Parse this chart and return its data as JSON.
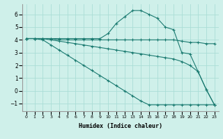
{
  "background_color": "#cff0ea",
  "grid_color": "#aaddd6",
  "line_color": "#1a7a70",
  "xlabel": "Humidex (Indice chaleur)",
  "xlim": [
    -0.5,
    23.5
  ],
  "ylim": [
    -1.6,
    6.8
  ],
  "yticks": [
    -1,
    0,
    1,
    2,
    3,
    4,
    5,
    6
  ],
  "xticks": [
    0,
    1,
    2,
    3,
    4,
    5,
    6,
    7,
    8,
    9,
    10,
    11,
    12,
    13,
    14,
    15,
    16,
    17,
    18,
    19,
    20,
    21,
    22,
    23
  ],
  "line1_x": [
    0,
    1,
    2,
    3,
    4,
    5,
    6,
    7,
    8,
    9,
    10,
    11,
    12,
    13,
    14,
    15,
    16,
    17,
    18,
    19,
    20,
    21,
    22,
    23
  ],
  "line1_y": [
    4.1,
    4.1,
    4.1,
    4.1,
    4.0,
    4.0,
    4.0,
    4.0,
    4.0,
    4.0,
    4.0,
    4.0,
    4.0,
    4.0,
    4.0,
    4.0,
    4.0,
    4.0,
    4.0,
    3.9,
    3.8,
    3.8,
    3.7,
    3.7
  ],
  "line2_x": [
    0,
    1,
    2,
    3,
    4,
    5,
    6,
    7,
    8,
    9,
    10,
    11,
    12,
    13,
    14,
    15,
    16,
    17,
    18,
    19,
    20,
    21,
    22,
    23
  ],
  "line2_y": [
    4.1,
    4.1,
    4.1,
    4.0,
    3.9,
    3.8,
    3.7,
    3.6,
    3.5,
    3.4,
    3.3,
    3.2,
    3.1,
    3.0,
    2.9,
    2.8,
    2.7,
    2.6,
    2.5,
    2.3,
    2.0,
    1.5,
    0.1,
    -1.1
  ],
  "line3_x": [
    0,
    1,
    2,
    3,
    4,
    5,
    6,
    7,
    8,
    9,
    10,
    11,
    12,
    13,
    14,
    15,
    16,
    17,
    18,
    19,
    20,
    21,
    22,
    23
  ],
  "line3_y": [
    4.1,
    4.1,
    4.0,
    3.6,
    3.2,
    2.8,
    2.4,
    2.0,
    1.6,
    1.2,
    0.8,
    0.4,
    0.0,
    -0.4,
    -0.8,
    -1.1,
    -1.1,
    -1.1,
    -1.1,
    -1.1,
    -1.1,
    -1.1,
    -1.1,
    -1.1
  ],
  "line4_x": [
    0,
    1,
    2,
    3,
    4,
    5,
    6,
    7,
    8,
    9,
    10,
    11,
    12,
    13,
    14,
    15,
    16,
    17,
    18,
    19,
    20,
    21,
    22,
    23
  ],
  "line4_y": [
    4.1,
    4.1,
    4.1,
    4.1,
    4.1,
    4.1,
    4.1,
    4.1,
    4.1,
    4.1,
    4.5,
    5.3,
    5.8,
    6.3,
    6.3,
    6.0,
    5.7,
    5.0,
    4.8,
    3.0,
    2.9,
    1.5,
    0.1,
    -1.1
  ]
}
